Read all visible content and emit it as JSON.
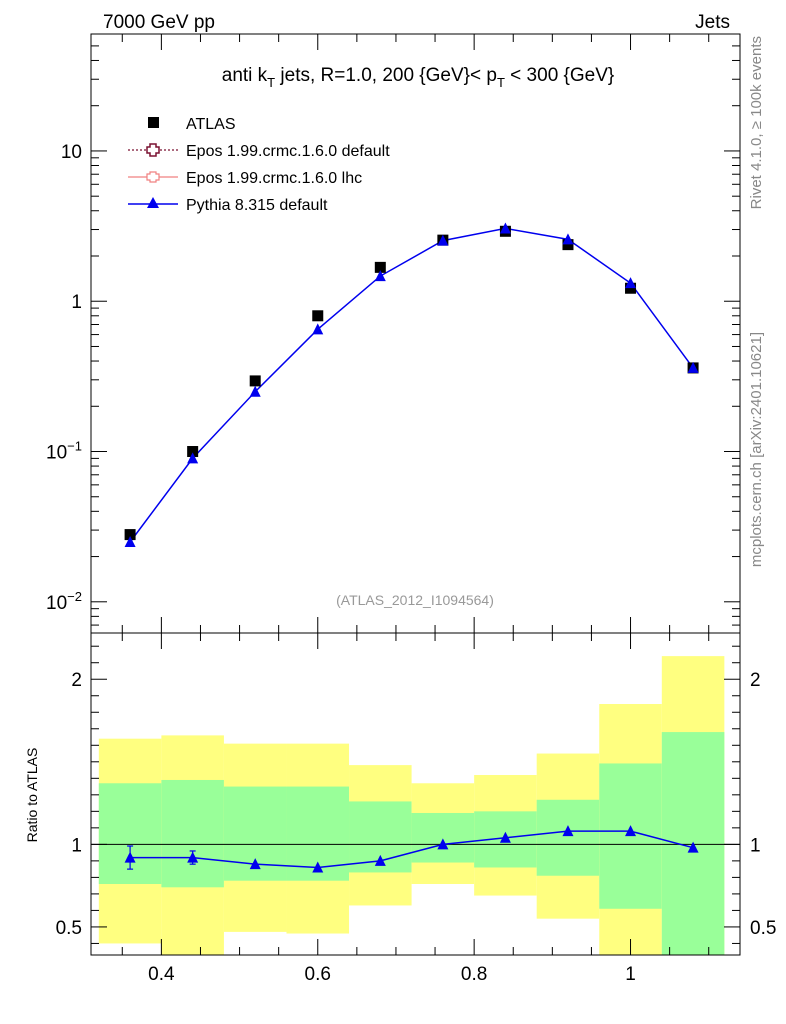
{
  "header": {
    "left": "7000 GeV pp",
    "right": "Jets"
  },
  "side_labels": {
    "rivet": "Rivet 4.1.0, ≥ 100k events",
    "mcplots": "mcplots.cern.ch [arXiv:2401.10621]"
  },
  "colors": {
    "atlas": "#000000",
    "epos_default": "#7a1030",
    "epos_lhc": "#f08080",
    "pythia": "#0000ee",
    "band_outer": "#ffff80",
    "band_inner": "#99ff99"
  },
  "chart_data": [
    {
      "type": "scatter",
      "scale": "log",
      "title": {
        "prefix": "anti k",
        "prefix_sub": "T",
        "middle": " jets, R=1.0,  200 {GeV}< p",
        "middle_sub": "T",
        "suffix": " < 300 {GeV}"
      },
      "xlim": [
        0.31,
        1.14
      ],
      "ylim": [
        0.0062,
        60
      ],
      "yticks": [
        {
          "value": 0.01,
          "base": "10",
          "exp": "−2"
        },
        {
          "value": 0.1,
          "base": "10",
          "exp": "−1"
        },
        {
          "value": 1,
          "label": "1"
        },
        {
          "value": 10,
          "label": "10"
        }
      ],
      "reference": "(ATLAS_2012_I1094564)",
      "legend": [
        {
          "label": "ATLAS"
        },
        {
          "label": "Epos 1.99.crmc.1.6.0 default"
        },
        {
          "label": "Epos 1.99.crmc.1.6.0 lhc"
        },
        {
          "label": "Pythia 8.315 default"
        }
      ],
      "x": [
        0.36,
        0.44,
        0.52,
        0.6,
        0.68,
        0.76,
        0.84,
        0.92,
        1.0,
        1.08
      ],
      "series": [
        {
          "name": "ATLAS",
          "values": [
            0.028,
            0.1,
            0.295,
            0.8,
            1.68,
            2.55,
            2.92,
            2.38,
            1.22,
            0.36
          ]
        },
        {
          "name": "Pythia 8.315 default",
          "values": [
            0.025,
            0.09,
            0.25,
            0.65,
            1.47,
            2.53,
            3.05,
            2.58,
            1.32,
            0.36
          ]
        }
      ]
    },
    {
      "type": "scatter",
      "ylabel": "Ratio to ATLAS",
      "xlim": [
        0.31,
        1.14
      ],
      "ylim": [
        0.33,
        2.28
      ],
      "xticks": [
        {
          "value": 0.4,
          "label": "0.4"
        },
        {
          "value": 0.6,
          "label": "0.6"
        },
        {
          "value": 0.8,
          "label": "0.8"
        },
        {
          "value": 1.0,
          "label": "1"
        }
      ],
      "yticks": [
        {
          "value": 0.5,
          "label": "0.5"
        },
        {
          "value": 1,
          "label": "1"
        },
        {
          "value": 2,
          "label": "2"
        }
      ],
      "bins": [
        {
          "lo": 0.32,
          "hi": 0.4,
          "outer": [
            0.4,
            1.64
          ],
          "inner": [
            0.76,
            1.37
          ]
        },
        {
          "lo": 0.4,
          "hi": 0.48,
          "outer": [
            0.33,
            1.66
          ],
          "inner": [
            0.74,
            1.39
          ]
        },
        {
          "lo": 0.48,
          "hi": 0.56,
          "outer": [
            0.47,
            1.61
          ],
          "inner": [
            0.78,
            1.35
          ]
        },
        {
          "lo": 0.56,
          "hi": 0.64,
          "outer": [
            0.46,
            1.61
          ],
          "inner": [
            0.78,
            1.35
          ]
        },
        {
          "lo": 0.64,
          "hi": 0.72,
          "outer": [
            0.63,
            1.48
          ],
          "inner": [
            0.83,
            1.26
          ]
        },
        {
          "lo": 0.72,
          "hi": 0.8,
          "outer": [
            0.76,
            1.37
          ],
          "inner": [
            0.89,
            1.19
          ]
        },
        {
          "lo": 0.8,
          "hi": 0.88,
          "outer": [
            0.69,
            1.42
          ],
          "inner": [
            0.86,
            1.2
          ]
        },
        {
          "lo": 0.88,
          "hi": 0.96,
          "outer": [
            0.55,
            1.55
          ],
          "inner": [
            0.81,
            1.27
          ]
        },
        {
          "lo": 0.96,
          "hi": 1.04,
          "outer": [
            0.33,
            1.85
          ],
          "inner": [
            0.61,
            1.49
          ]
        },
        {
          "lo": 1.04,
          "hi": 1.12,
          "outer": [
            0.33,
            2.14
          ],
          "inner": [
            0.33,
            1.68
          ]
        }
      ],
      "x": [
        0.36,
        0.44,
        0.52,
        0.6,
        0.68,
        0.76,
        0.84,
        0.92,
        1.0,
        1.08
      ],
      "series": [
        {
          "name": "Pythia 8.315 default / ATLAS",
          "values": [
            0.92,
            0.92,
            0.88,
            0.86,
            0.9,
            1.0,
            1.04,
            1.08,
            1.08,
            0.98
          ],
          "err": [
            0.07,
            0.04,
            0.02,
            0.01,
            0.01,
            0.01,
            0.01,
            0.01,
            0.01,
            0.01
          ]
        }
      ]
    }
  ]
}
